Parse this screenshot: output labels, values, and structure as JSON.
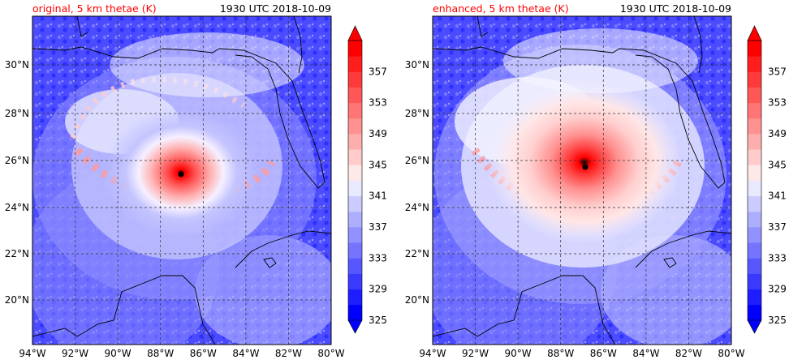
{
  "colors": {
    "title_left": "#ff0000",
    "title_right": "#000000",
    "cbar": [
      "#0000ff",
      "#1d1dff",
      "#3a3aff",
      "#5757ff",
      "#7474ff",
      "#9191ff",
      "#aeaeff",
      "#cbcbff",
      "#e8e8ff",
      "#ffe8e8",
      "#ffcbcb",
      "#ffaeae",
      "#ff9191",
      "#ff7474",
      "#ff5757",
      "#ff3a3a",
      "#ff1d1d",
      "#ff0000"
    ]
  },
  "panels": [
    {
      "title": "original, 5 km thetae (K)",
      "time": "1930 UTC 2018-10-09",
      "center": {
        "lon": -87.0,
        "lat": 25.4
      }
    },
    {
      "title": "enhanced, 5 km thetae (K)",
      "time": "1930 UTC 2018-10-09",
      "center": {
        "lon": -86.9,
        "lat": 25.75
      }
    }
  ],
  "axes": {
    "lon_ticks": [
      "94°W",
      "92°W",
      "90°W",
      "88°W",
      "86°W",
      "84°W",
      "82°W",
      "80°W"
    ],
    "lat_ticks": [
      "20°N",
      "22°N",
      "24°N",
      "26°N",
      "28°N",
      "30°N"
    ],
    "lon_range": [
      -94,
      -80
    ],
    "lat_range": [
      18.0,
      32.0
    ]
  },
  "colorbar": {
    "label_values": [
      "325",
      "329",
      "333",
      "337",
      "341",
      "345",
      "349",
      "353",
      "357"
    ],
    "min": 325,
    "max": 359,
    "step": 2
  }
}
